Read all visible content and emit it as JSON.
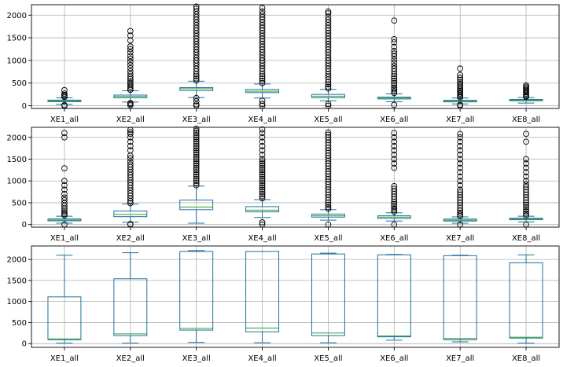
{
  "chart_data": [
    {
      "type": "box",
      "categories": [
        "XE1_all",
        "XE2_all",
        "XE3_all",
        "XE4_all",
        "XE5_all",
        "XE6_all",
        "XE7_all",
        "XE8_all"
      ],
      "ylim": [
        -60,
        2230
      ],
      "yticks": [
        0,
        500,
        1000,
        1500,
        2000
      ],
      "grid": true,
      "boxes": [
        {
          "whislo": 30,
          "q1": 90,
          "med": 105,
          "q3": 125,
          "whishi": 175,
          "fliers": [
            0,
            15,
            190,
            215,
            240,
            270,
            345
          ]
        },
        {
          "whislo": 80,
          "q1": 175,
          "med": 205,
          "q3": 235,
          "whishi": 330,
          "fliers": [
            10,
            40,
            60,
            350,
            380,
            420,
            460,
            500,
            540,
            590,
            640,
            700,
            760,
            830,
            900,
            970,
            1040,
            1100,
            1180,
            1250,
            1310,
            1440,
            1550,
            1650
          ]
        },
        {
          "whislo": 180,
          "q1": 335,
          "med": 375,
          "q3": 400,
          "whishi": 540,
          "fliers": [
            0,
            30,
            100,
            170,
            560,
            600,
            650,
            700,
            760,
            820,
            880,
            940,
            1000,
            1060,
            1120,
            1180,
            1240,
            1300,
            1360,
            1420,
            1480,
            1540,
            1600,
            1660,
            1720,
            1780,
            1840,
            1900,
            1960,
            2020,
            2080,
            2140,
            2190
          ]
        },
        {
          "whislo": 170,
          "q1": 290,
          "med": 320,
          "q3": 360,
          "whishi": 480,
          "fliers": [
            0,
            40,
            110,
            500,
            550,
            600,
            650,
            700,
            760,
            820,
            880,
            940,
            1000,
            1060,
            1120,
            1180,
            1240,
            1300,
            1360,
            1420,
            1480,
            1540,
            1600,
            1660,
            1720,
            1780,
            1840,
            1900,
            1960,
            2020,
            2080,
            2160
          ]
        },
        {
          "whislo": 110,
          "q1": 175,
          "med": 210,
          "q3": 250,
          "whishi": 360,
          "fliers": [
            0,
            40,
            380,
            420,
            470,
            520,
            580,
            640,
            700,
            760,
            820,
            880,
            940,
            1000,
            1060,
            1120,
            1180,
            1240,
            1300,
            1360,
            1420,
            1480,
            1540,
            1600,
            1660,
            1720,
            1780,
            1840,
            1900,
            1960,
            2040,
            2080
          ]
        },
        {
          "whislo": 90,
          "q1": 150,
          "med": 170,
          "q3": 190,
          "whishi": 260,
          "fliers": [
            20,
            280,
            320,
            360,
            400,
            450,
            500,
            550,
            600,
            650,
            700,
            760,
            820,
            880,
            950,
            1020,
            1090,
            1150,
            1210,
            1300,
            1400,
            1470,
            1880
          ]
        },
        {
          "whislo": 40,
          "q1": 85,
          "med": 100,
          "q3": 120,
          "whishi": 170,
          "fliers": [
            0,
            20,
            185,
            210,
            240,
            270,
            300,
            330,
            360,
            400,
            440,
            480,
            520,
            570,
            620,
            680,
            820
          ]
        },
        {
          "whislo": 60,
          "q1": 110,
          "med": 125,
          "q3": 140,
          "whishi": 180,
          "fliers": [
            195,
            215,
            240,
            270,
            300,
            330,
            360,
            390,
            420,
            450
          ]
        }
      ]
    },
    {
      "type": "box",
      "categories": [
        "XE1_all",
        "XE2_all",
        "XE3_all",
        "XE4_all",
        "XE5_all",
        "XE6_all",
        "XE7_all",
        "XE8_all"
      ],
      "ylim": [
        -60,
        2230
      ],
      "yticks": [
        0,
        500,
        1000,
        1500,
        2000
      ],
      "grid": true,
      "boxes": [
        {
          "whislo": 30,
          "q1": 85,
          "med": 105,
          "q3": 130,
          "whishi": 190,
          "fliers": [
            0,
            210,
            240,
            280,
            320,
            370,
            430,
            490,
            560,
            620,
            700,
            800,
            900,
            1000,
            1290,
            2000,
            2100
          ]
        },
        {
          "whislo": 50,
          "q1": 180,
          "med": 230,
          "q3": 310,
          "whishi": 470,
          "fliers": [
            0,
            10,
            490,
            540,
            600,
            660,
            720,
            780,
            840,
            900,
            960,
            1020,
            1080,
            1140,
            1200,
            1260,
            1320,
            1380,
            1440,
            1520,
            1580,
            1700,
            1800,
            1900,
            2000,
            2080,
            2120,
            2170
          ]
        },
        {
          "whislo": 30,
          "q1": 340,
          "med": 400,
          "q3": 560,
          "whishi": 880,
          "fliers": [
            900,
            950,
            1000,
            1050,
            1100,
            1150,
            1200,
            1250,
            1300,
            1350,
            1400,
            1450,
            1500,
            1550,
            1600,
            1650,
            1700,
            1750,
            1800,
            1850,
            1900,
            1950,
            2000,
            2050,
            2100,
            2150,
            2200
          ]
        },
        {
          "whislo": 160,
          "q1": 290,
          "med": 330,
          "q3": 410,
          "whishi": 570,
          "fliers": [
            0,
            50,
            600,
            650,
            700,
            750,
            800,
            850,
            900,
            950,
            1000,
            1050,
            1100,
            1150,
            1200,
            1250,
            1300,
            1350,
            1400,
            1450,
            1500,
            1600,
            1700,
            1800,
            1900,
            2000,
            2100,
            2180
          ]
        },
        {
          "whislo": 100,
          "q1": 170,
          "med": 200,
          "q3": 240,
          "whishi": 340,
          "fliers": [
            0,
            360,
            400,
            450,
            500,
            560,
            620,
            680,
            740,
            800,
            860,
            920,
            980,
            1040,
            1100,
            1160,
            1220,
            1280,
            1340,
            1400,
            1460,
            1520,
            1580,
            1640,
            1700,
            1760,
            1820,
            1880,
            1940,
            2000,
            2060,
            2110
          ]
        },
        {
          "whislo": 80,
          "q1": 140,
          "med": 170,
          "q3": 200,
          "whishi": 270,
          "fliers": [
            0,
            290,
            330,
            370,
            420,
            470,
            520,
            580,
            640,
            700,
            760,
            820,
            880,
            1300,
            1400,
            1500,
            1600,
            1700,
            1800,
            1900,
            2000,
            2100
          ]
        },
        {
          "whislo": 30,
          "q1": 80,
          "med": 100,
          "q3": 125,
          "whishi": 175,
          "fliers": [
            0,
            195,
            230,
            270,
            320,
            380,
            440,
            500,
            560,
            620,
            680,
            740,
            800,
            900,
            1000,
            1100,
            1200,
            1300,
            1400,
            1500,
            1600,
            1700,
            1800,
            1900,
            2000,
            2080
          ]
        },
        {
          "whislo": 60,
          "q1": 110,
          "med": 125,
          "q3": 145,
          "whishi": 190,
          "fliers": [
            0,
            210,
            250,
            300,
            350,
            400,
            450,
            500,
            560,
            620,
            680,
            740,
            800,
            860,
            920,
            1000,
            1100,
            1200,
            1300,
            1400,
            1500,
            1900,
            2080
          ]
        }
      ]
    },
    {
      "type": "box",
      "categories": [
        "XE1_all",
        "XE2_all",
        "XE3_all",
        "XE4_all",
        "XE5_all",
        "XE6_all",
        "XE7_all",
        "XE8_all"
      ],
      "ylim": [
        -90,
        2320
      ],
      "yticks": [
        0,
        500,
        1000,
        1500,
        2000
      ],
      "grid": true,
      "boxes": [
        {
          "whislo": 10,
          "q1": 90,
          "med": 110,
          "q3": 1110,
          "whishi": 2100,
          "fliers": []
        },
        {
          "whislo": 10,
          "q1": 190,
          "med": 230,
          "q3": 1540,
          "whishi": 2160,
          "fliers": []
        },
        {
          "whislo": 30,
          "q1": 320,
          "med": 360,
          "q3": 2190,
          "whishi": 2210,
          "fliers": []
        },
        {
          "whislo": 20,
          "q1": 280,
          "med": 370,
          "q3": 2190,
          "whishi": 2190,
          "fliers": []
        },
        {
          "whislo": 20,
          "q1": 190,
          "med": 250,
          "q3": 2130,
          "whishi": 2150,
          "fliers": []
        },
        {
          "whislo": 80,
          "q1": 160,
          "med": 180,
          "q3": 2110,
          "whishi": 2120,
          "fliers": []
        },
        {
          "whislo": 40,
          "q1": 90,
          "med": 120,
          "q3": 2090,
          "whishi": 2100,
          "fliers": []
        },
        {
          "whislo": 10,
          "q1": 130,
          "med": 150,
          "q3": 1920,
          "whishi": 2110,
          "fliers": []
        }
      ]
    }
  ]
}
